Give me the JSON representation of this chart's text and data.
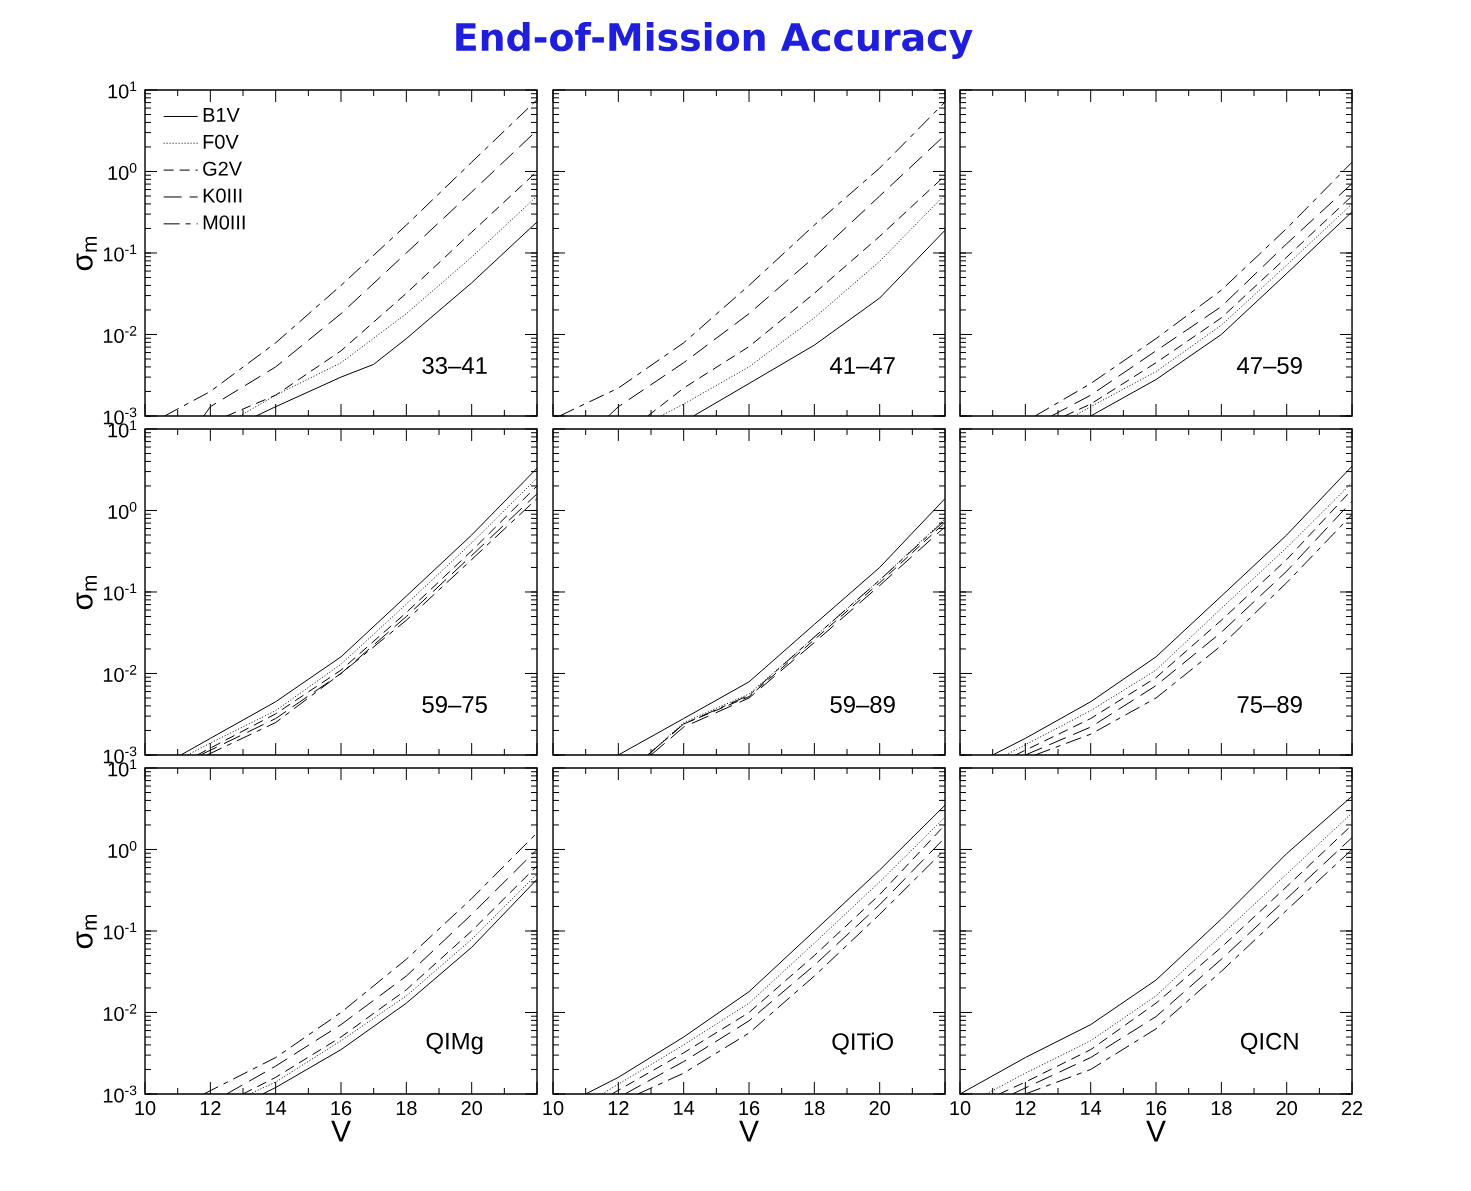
{
  "chart_data": [
    {
      "type": "line",
      "log": "y",
      "legend": "top left",
      "tick_labels": "y",
      "ylabel": "σ$_{m}$",
      "xlim": [
        10,
        22
      ],
      "ylim": [
        0.001,
        10
      ],
      "xticks": [
        10,
        12,
        14,
        16,
        18,
        20,
        22
      ],
      "yticks": [
        {
          "value": 0.001,
          "label": "10$^{-3}$"
        },
        {
          "value": 0.01,
          "label": "10$^{-2}$"
        },
        {
          "value": 0.1,
          "label": "10$^{-1}$"
        },
        {
          "value": 1,
          "label": "10$^{0}$"
        },
        {
          "value": 10,
          "label": "10$^{1}$"
        }
      ],
      "annotations": [
        "33–41"
      ],
      "series": [
        {
          "name": "B1V",
          "color": "#000000",
          "line_style": "solid",
          "x": [
            13.4,
            14,
            16,
            17,
            18,
            20,
            22
          ],
          "values": [
            0.001,
            0.0013,
            0.003,
            0.0043,
            0.0089,
            0.043,
            0.24
          ]
        },
        {
          "name": "F0V",
          "color": "#000000",
          "line_style": "dotted",
          "x": [
            12.9,
            14,
            16,
            18,
            20,
            22
          ],
          "values": [
            0.001,
            0.0018,
            0.0045,
            0.018,
            0.089,
            0.5
          ]
        },
        {
          "name": "G2V",
          "color": "#000000",
          "line_style": "dashed",
          "x": [
            12.5,
            14,
            16,
            18,
            20,
            22
          ],
          "values": [
            0.001,
            0.0018,
            0.0063,
            0.032,
            0.18,
            1.0
          ]
        },
        {
          "name": "K0III",
          "color": "#000000",
          "line_style": "long dashed",
          "x": [
            11.8,
            12,
            14,
            16,
            18,
            20,
            22
          ],
          "values": [
            0.001,
            0.0013,
            0.004,
            0.018,
            0.1,
            0.56,
            3.2
          ]
        },
        {
          "name": "M0III",
          "color": "#000000",
          "line_style": "dash dot",
          "x": [
            10.6,
            12,
            14,
            16,
            18,
            20,
            22
          ],
          "values": [
            0.001,
            0.002,
            0.0079,
            0.04,
            0.22,
            1.3,
            7.6
          ]
        }
      ]
    },
    {
      "type": "line",
      "log": "y",
      "tick_labels": false,
      "title": "End-of-Mission Accuracy",
      "xlim": [
        10,
        22
      ],
      "ylim": [
        0.001,
        10
      ],
      "xticks": [
        10,
        12,
        14,
        16,
        18,
        20,
        22
      ],
      "yticks": [
        0.001,
        0.01,
        0.1,
        1,
        10
      ],
      "annotations": [
        "41–47"
      ],
      "series": [
        {
          "color": "#000000",
          "line_style": "solid",
          "x": [
            14.3,
            16,
            18,
            20,
            22
          ],
          "values": [
            0.001,
            0.0025,
            0.0074,
            0.028,
            0.19
          ]
        },
        {
          "color": "#000000",
          "line_style": "dotted",
          "x": [
            13.3,
            14,
            16,
            18,
            20,
            22
          ],
          "values": [
            0.001,
            0.0014,
            0.004,
            0.016,
            0.079,
            0.52
          ]
        },
        {
          "color": "#000000",
          "line_style": "dashed",
          "x": [
            12.9,
            14,
            16,
            18,
            20,
            22
          ],
          "values": [
            0.001,
            0.0022,
            0.0071,
            0.032,
            0.16,
            0.89
          ]
        },
        {
          "color": "#000000",
          "line_style": "long dashed",
          "x": [
            11.7,
            12,
            14,
            16,
            18,
            20,
            22
          ],
          "values": [
            0.001,
            0.0013,
            0.0045,
            0.018,
            0.089,
            0.5,
            2.8
          ]
        },
        {
          "color": "#000000",
          "line_style": "dash dot",
          "x": [
            10.2,
            12,
            14,
            16,
            18,
            20,
            22
          ],
          "values": [
            0.001,
            0.0022,
            0.0079,
            0.04,
            0.22,
            1.1,
            7.1
          ]
        }
      ]
    },
    {
      "type": "line",
      "log": "y",
      "tick_labels": false,
      "xlim": [
        10,
        22
      ],
      "ylim": [
        0.001,
        10
      ],
      "xticks": [
        10,
        12,
        14,
        16,
        18,
        20,
        22
      ],
      "yticks": [
        0.001,
        0.01,
        0.1,
        1,
        10
      ],
      "annotations": [
        "47–59"
      ],
      "series": [
        {
          "color": "#000000",
          "line_style": "solid",
          "x": [
            14.0,
            16,
            18,
            20,
            22
          ],
          "values": [
            0.001,
            0.0028,
            0.01,
            0.056,
            0.32
          ]
        },
        {
          "color": "#000000",
          "line_style": "dotted",
          "x": [
            13.5,
            14,
            16,
            18,
            20,
            22
          ],
          "values": [
            0.001,
            0.0013,
            0.0035,
            0.013,
            0.071,
            0.4
          ]
        },
        {
          "color": "#000000",
          "line_style": "dashed",
          "x": [
            13.2,
            14,
            16,
            18,
            20,
            22
          ],
          "values": [
            0.001,
            0.0014,
            0.0045,
            0.016,
            0.089,
            0.5
          ]
        },
        {
          "color": "#000000",
          "line_style": "long dashed",
          "x": [
            12.8,
            14,
            16,
            18,
            20,
            22
          ],
          "values": [
            0.001,
            0.0018,
            0.0063,
            0.022,
            0.13,
            0.71
          ]
        },
        {
          "color": "#000000",
          "line_style": "dash dot",
          "x": [
            12.3,
            14,
            16,
            18,
            20,
            22
          ],
          "values": [
            0.001,
            0.0025,
            0.0089,
            0.035,
            0.2,
            1.3
          ]
        }
      ]
    },
    {
      "type": "line",
      "log": "y",
      "tick_labels": "y",
      "ylabel": "σ$_{m}$",
      "xlim": [
        10,
        22
      ],
      "ylim": [
        0.001,
        10
      ],
      "xticks": [
        10,
        12,
        14,
        16,
        18,
        20,
        22
      ],
      "yticks": [
        {
          "value": 0.001,
          "label": "10$^{-3}$"
        },
        {
          "value": 0.01,
          "label": "10$^{-2}$"
        },
        {
          "value": 0.1,
          "label": "10$^{-1}$"
        },
        {
          "value": 1,
          "label": "10$^{0}$"
        },
        {
          "value": 10,
          "label": "10$^{1}$"
        }
      ],
      "annotations": [
        "59–75"
      ],
      "series": [
        {
          "color": "#000000",
          "line_style": "solid",
          "x": [
            11.1,
            12,
            14,
            16,
            18,
            20,
            22
          ],
          "values": [
            0.001,
            0.0016,
            0.0045,
            0.016,
            0.089,
            0.5,
            3.3
          ]
        },
        {
          "color": "#000000",
          "line_style": "dotted",
          "x": [
            11.3,
            12,
            14,
            16,
            18,
            20,
            22
          ],
          "values": [
            0.001,
            0.0014,
            0.0035,
            0.013,
            0.071,
            0.4,
            2.5
          ]
        },
        {
          "color": "#000000",
          "line_style": "dashed",
          "x": [
            11.6,
            14,
            16,
            18,
            20,
            22
          ],
          "values": [
            0.001,
            0.0032,
            0.011,
            0.056,
            0.32,
            2.0
          ]
        },
        {
          "color": "#000000",
          "line_style": "long dashed",
          "x": [
            11.7,
            14,
            16,
            18,
            20,
            22
          ],
          "values": [
            0.001,
            0.0028,
            0.01,
            0.05,
            0.28,
            1.6
          ]
        },
        {
          "color": "#000000",
          "line_style": "dash dot",
          "x": [
            11.9,
            14,
            16,
            18,
            20,
            22
          ],
          "values": [
            0.001,
            0.0025,
            0.01,
            0.045,
            0.25,
            1.4
          ]
        }
      ]
    },
    {
      "type": "line",
      "log": "y",
      "tick_labels": false,
      "xlim": [
        10,
        22
      ],
      "ylim": [
        0.001,
        10
      ],
      "xticks": [
        10,
        12,
        14,
        16,
        18,
        20,
        22
      ],
      "yticks": [
        0.001,
        0.01,
        0.1,
        1,
        10
      ],
      "annotations": [
        "59–89"
      ],
      "series": [
        {
          "color": "#000000",
          "line_style": "solid",
          "x": [
            12.0,
            14,
            16,
            18,
            20,
            22
          ],
          "values": [
            0.001,
            0.0028,
            0.0079,
            0.04,
            0.2,
            1.4
          ]
        },
        {
          "color": "#000000",
          "line_style": "dotted",
          "x": [
            12.9,
            14,
            16,
            18,
            20,
            22
          ],
          "values": [
            0.001,
            0.0025,
            0.0056,
            0.028,
            0.14,
            0.79
          ]
        },
        {
          "color": "#000000",
          "line_style": "dashed",
          "x": [
            12.9,
            14,
            16,
            18,
            20,
            22
          ],
          "values": [
            0.001,
            0.0024,
            0.0052,
            0.026,
            0.13,
            0.71
          ]
        },
        {
          "color": "#000000",
          "line_style": "long dashed",
          "x": [
            13.0,
            14,
            16,
            18,
            20,
            22
          ],
          "values": [
            0.001,
            0.0022,
            0.005,
            0.024,
            0.12,
            0.63
          ]
        },
        {
          "color": "#000000",
          "line_style": "dash dot",
          "x": [
            12.9,
            14,
            16,
            18,
            20,
            22
          ],
          "values": [
            0.001,
            0.0024,
            0.0054,
            0.028,
            0.14,
            0.76
          ]
        }
      ]
    },
    {
      "type": "line",
      "log": "y",
      "tick_labels": false,
      "xlim": [
        10,
        22
      ],
      "ylim": [
        0.001,
        10
      ],
      "xticks": [
        10,
        12,
        14,
        16,
        18,
        20,
        22
      ],
      "yticks": [
        0.001,
        0.01,
        0.1,
        1,
        10
      ],
      "annotations": [
        "75–89"
      ],
      "series": [
        {
          "color": "#000000",
          "line_style": "solid",
          "x": [
            11.0,
            12,
            14,
            16,
            18,
            20,
            22
          ],
          "values": [
            0.001,
            0.0016,
            0.0045,
            0.016,
            0.089,
            0.5,
            3.5
          ]
        },
        {
          "color": "#000000",
          "line_style": "dotted",
          "x": [
            11.4,
            14,
            16,
            18,
            20,
            22
          ],
          "values": [
            0.001,
            0.0035,
            0.011,
            0.063,
            0.35,
            2.2
          ]
        },
        {
          "color": "#000000",
          "line_style": "dashed",
          "x": [
            11.7,
            14,
            16,
            18,
            20,
            22
          ],
          "values": [
            0.001,
            0.0028,
            0.0089,
            0.045,
            0.25,
            1.8
          ]
        },
        {
          "color": "#000000",
          "line_style": "long dashed",
          "x": [
            12.0,
            14,
            16,
            18,
            20,
            22
          ],
          "values": [
            0.001,
            0.0022,
            0.0071,
            0.032,
            0.18,
            1.3
          ]
        },
        {
          "color": "#000000",
          "line_style": "dash dot",
          "x": [
            12.3,
            14,
            16,
            18,
            20,
            22
          ],
          "values": [
            0.001,
            0.0018,
            0.005,
            0.022,
            0.13,
            0.89
          ]
        }
      ]
    },
    {
      "type": "line",
      "log": "y",
      "ylabel": "σ$_{m}$",
      "xlabel": "V",
      "xlim": [
        10,
        22
      ],
      "ylim": [
        0.001,
        10
      ],
      "xticks": [
        10,
        12,
        14,
        16,
        18,
        20,
        {
          "value": 22,
          "label": null
        }
      ],
      "yticks": [
        {
          "value": 0.001,
          "label": "10$^{-3}$"
        },
        {
          "value": 0.01,
          "label": "10$^{-2}$"
        },
        {
          "value": 0.1,
          "label": "10$^{-1}$"
        },
        {
          "value": 1,
          "label": "10$^{0}$"
        },
        {
          "value": 10,
          "label": "10$^{1}$"
        }
      ],
      "annotations": [
        "QIMg"
      ],
      "series": [
        {
          "color": "#000000",
          "line_style": "solid",
          "x": [
            13.6,
            14,
            16,
            18,
            20,
            22
          ],
          "values": [
            0.001,
            0.0012,
            0.0035,
            0.013,
            0.063,
            0.43
          ]
        },
        {
          "color": "#000000",
          "line_style": "dotted",
          "x": [
            13.2,
            14,
            16,
            18,
            20,
            22
          ],
          "values": [
            0.001,
            0.0014,
            0.0045,
            0.016,
            0.079,
            0.5
          ]
        },
        {
          "color": "#000000",
          "line_style": "dashed",
          "x": [
            13.0,
            14,
            16,
            18,
            20,
            22
          ],
          "values": [
            0.001,
            0.0016,
            0.005,
            0.019,
            0.1,
            0.63
          ]
        },
        {
          "color": "#000000",
          "line_style": "long dashed",
          "x": [
            12.5,
            14,
            16,
            18,
            20,
            22
          ],
          "values": [
            0.001,
            0.0022,
            0.0071,
            0.028,
            0.16,
            1.0
          ]
        },
        {
          "color": "#000000",
          "line_style": "dash dot",
          "x": [
            11.8,
            14,
            16,
            18,
            20,
            22
          ],
          "values": [
            0.001,
            0.0028,
            0.01,
            0.045,
            0.25,
            1.6
          ]
        }
      ]
    },
    {
      "type": "line",
      "log": "y",
      "tick_labels": "x",
      "xlabel": "V",
      "xlim": [
        10,
        22
      ],
      "ylim": [
        0.001,
        10
      ],
      "xticks": [
        10,
        12,
        14,
        16,
        18,
        20,
        {
          "value": 22,
          "label": null
        }
      ],
      "yticks": [
        0.001,
        0.01,
        0.1,
        1,
        10
      ],
      "annotations": [
        "QITiO"
      ],
      "series": [
        {
          "color": "#000000",
          "line_style": "solid",
          "x": [
            11.0,
            12,
            14,
            16,
            18,
            20,
            22
          ],
          "values": [
            0.001,
            0.0016,
            0.005,
            0.018,
            0.1,
            0.56,
            3.5
          ]
        },
        {
          "color": "#000000",
          "line_style": "dotted",
          "x": [
            11.5,
            14,
            16,
            18,
            20,
            22
          ],
          "values": [
            0.001,
            0.004,
            0.013,
            0.071,
            0.4,
            2.5
          ]
        },
        {
          "color": "#000000",
          "line_style": "dashed",
          "x": [
            11.8,
            14,
            16,
            18,
            20,
            22
          ],
          "values": [
            0.001,
            0.0032,
            0.01,
            0.05,
            0.28,
            2.0
          ]
        },
        {
          "color": "#000000",
          "line_style": "long dashed",
          "x": [
            12.2,
            14,
            16,
            18,
            20,
            22
          ],
          "values": [
            0.001,
            0.0025,
            0.0079,
            0.038,
            0.21,
            1.4
          ]
        },
        {
          "color": "#000000",
          "line_style": "dash dot",
          "x": [
            12.6,
            14,
            16,
            18,
            20,
            22
          ],
          "values": [
            0.001,
            0.0018,
            0.0056,
            0.028,
            0.16,
            1.0
          ]
        }
      ]
    },
    {
      "type": "line",
      "log": "y",
      "tick_labels": "x",
      "xlabel": "V",
      "xlim": [
        10,
        22
      ],
      "ylim": [
        0.001,
        10
      ],
      "xticks": [
        10,
        12,
        14,
        16,
        18,
        20,
        22
      ],
      "yticks": [
        0.001,
        0.01,
        0.1,
        1,
        10
      ],
      "annotations": [
        "QICN"
      ],
      "series": [
        {
          "color": "#000000",
          "line_style": "solid",
          "x": [
            10.0,
            12,
            14,
            16,
            18,
            20,
            22
          ],
          "values": [
            0.001,
            0.0028,
            0.0071,
            0.025,
            0.14,
            0.89,
            4.5
          ]
        },
        {
          "color": "#000000",
          "line_style": "dotted",
          "x": [
            10.8,
            12,
            14,
            16,
            18,
            20,
            22
          ],
          "values": [
            0.001,
            0.0018,
            0.0045,
            0.016,
            0.089,
            0.5,
            2.8
          ]
        },
        {
          "color": "#000000",
          "line_style": "dashed",
          "x": [
            11.2,
            12,
            14,
            16,
            18,
            20,
            22
          ],
          "values": [
            0.001,
            0.0014,
            0.0035,
            0.013,
            0.063,
            0.35,
            2.0
          ]
        },
        {
          "color": "#000000",
          "line_style": "long dashed",
          "x": [
            11.6,
            14,
            16,
            18,
            20,
            22
          ],
          "values": [
            0.001,
            0.0028,
            0.0089,
            0.045,
            0.25,
            1.4
          ]
        },
        {
          "color": "#000000",
          "line_style": "dash dot",
          "x": [
            12.0,
            14,
            16,
            18,
            20,
            22
          ],
          "values": [
            0.001,
            0.002,
            0.0063,
            0.032,
            0.18,
            1.0
          ]
        }
      ]
    }
  ]
}
